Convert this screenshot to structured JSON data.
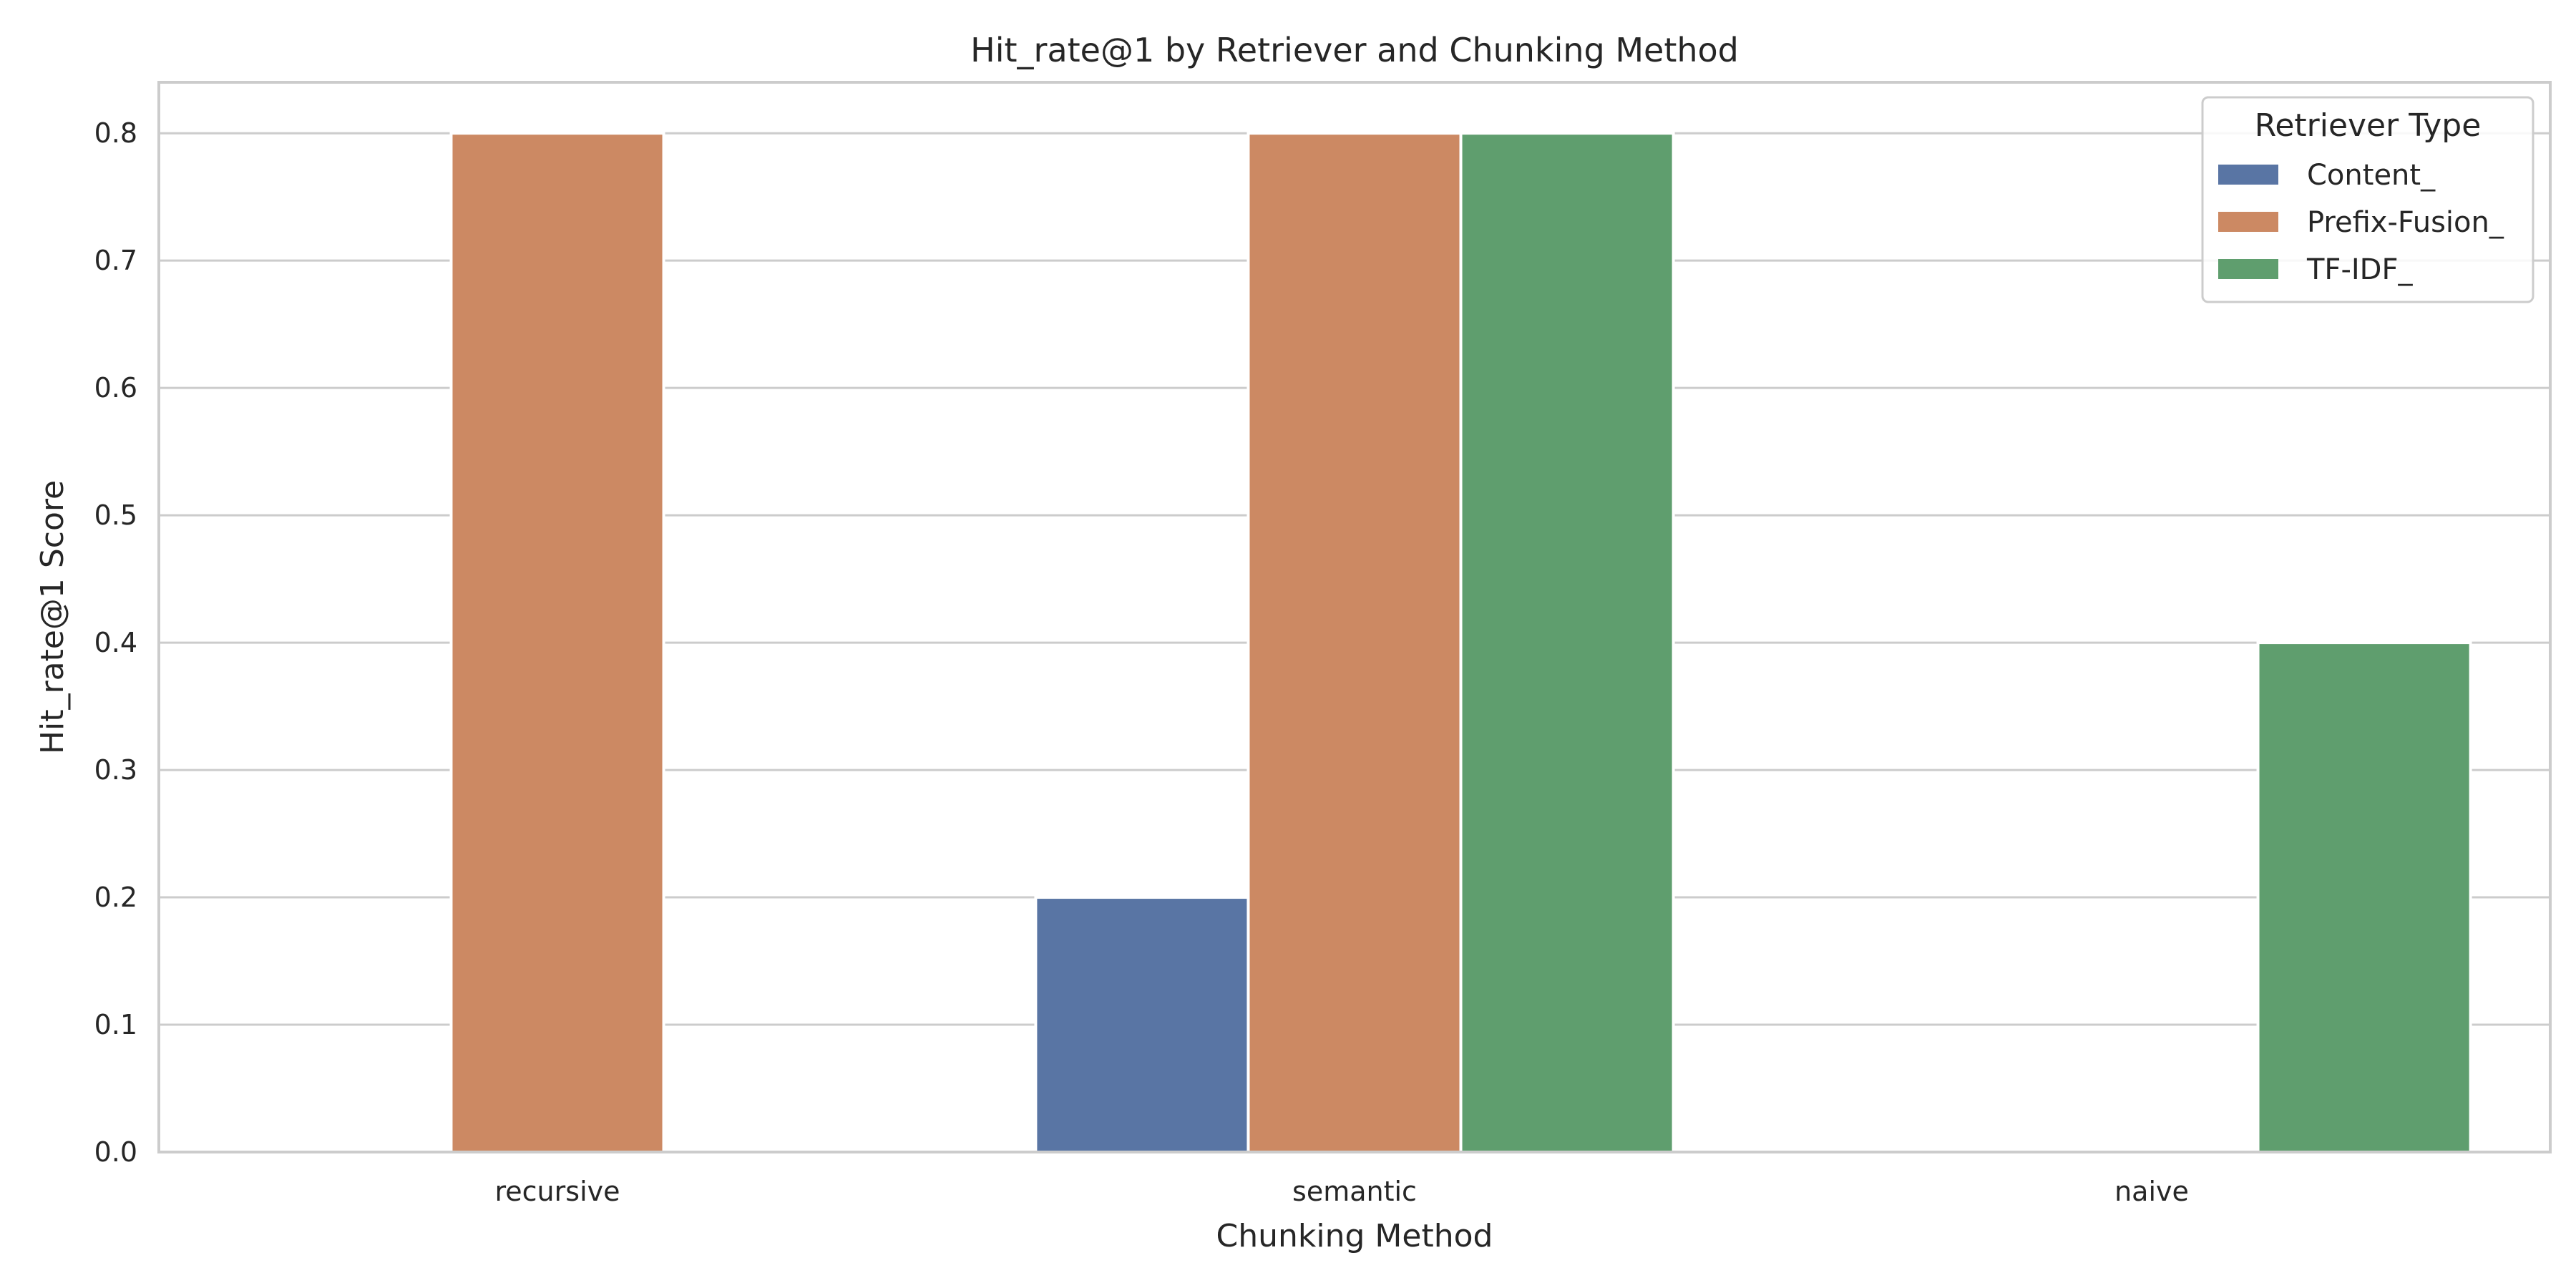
{
  "chart_data": {
    "type": "bar",
    "title": "Hit_rate@1 by Retriever and Chunking Method",
    "xlabel": "Chunking Method",
    "ylabel": "Hit_rate@1 Score",
    "categories": [
      "recursive",
      "semantic",
      "naive"
    ],
    "series": [
      {
        "name": "Content_",
        "color": "#5975a4",
        "values": [
          0.0,
          0.2,
          0.0
        ]
      },
      {
        "name": "Prefix-Fusion_",
        "color": "#cc8963",
        "values": [
          0.8,
          0.8,
          0.0
        ]
      },
      {
        "name": "TF-IDF_",
        "color": "#5f9e6e",
        "values": [
          0.0,
          0.8,
          0.4
        ]
      }
    ],
    "ylim": [
      0,
      0.84
    ],
    "yticks": [
      "0.0",
      "0.1",
      "0.2",
      "0.3",
      "0.4",
      "0.5",
      "0.6",
      "0.7",
      "0.8"
    ],
    "grid": true,
    "legend": {
      "title": "Retriever Type",
      "placement": "top-right"
    }
  }
}
